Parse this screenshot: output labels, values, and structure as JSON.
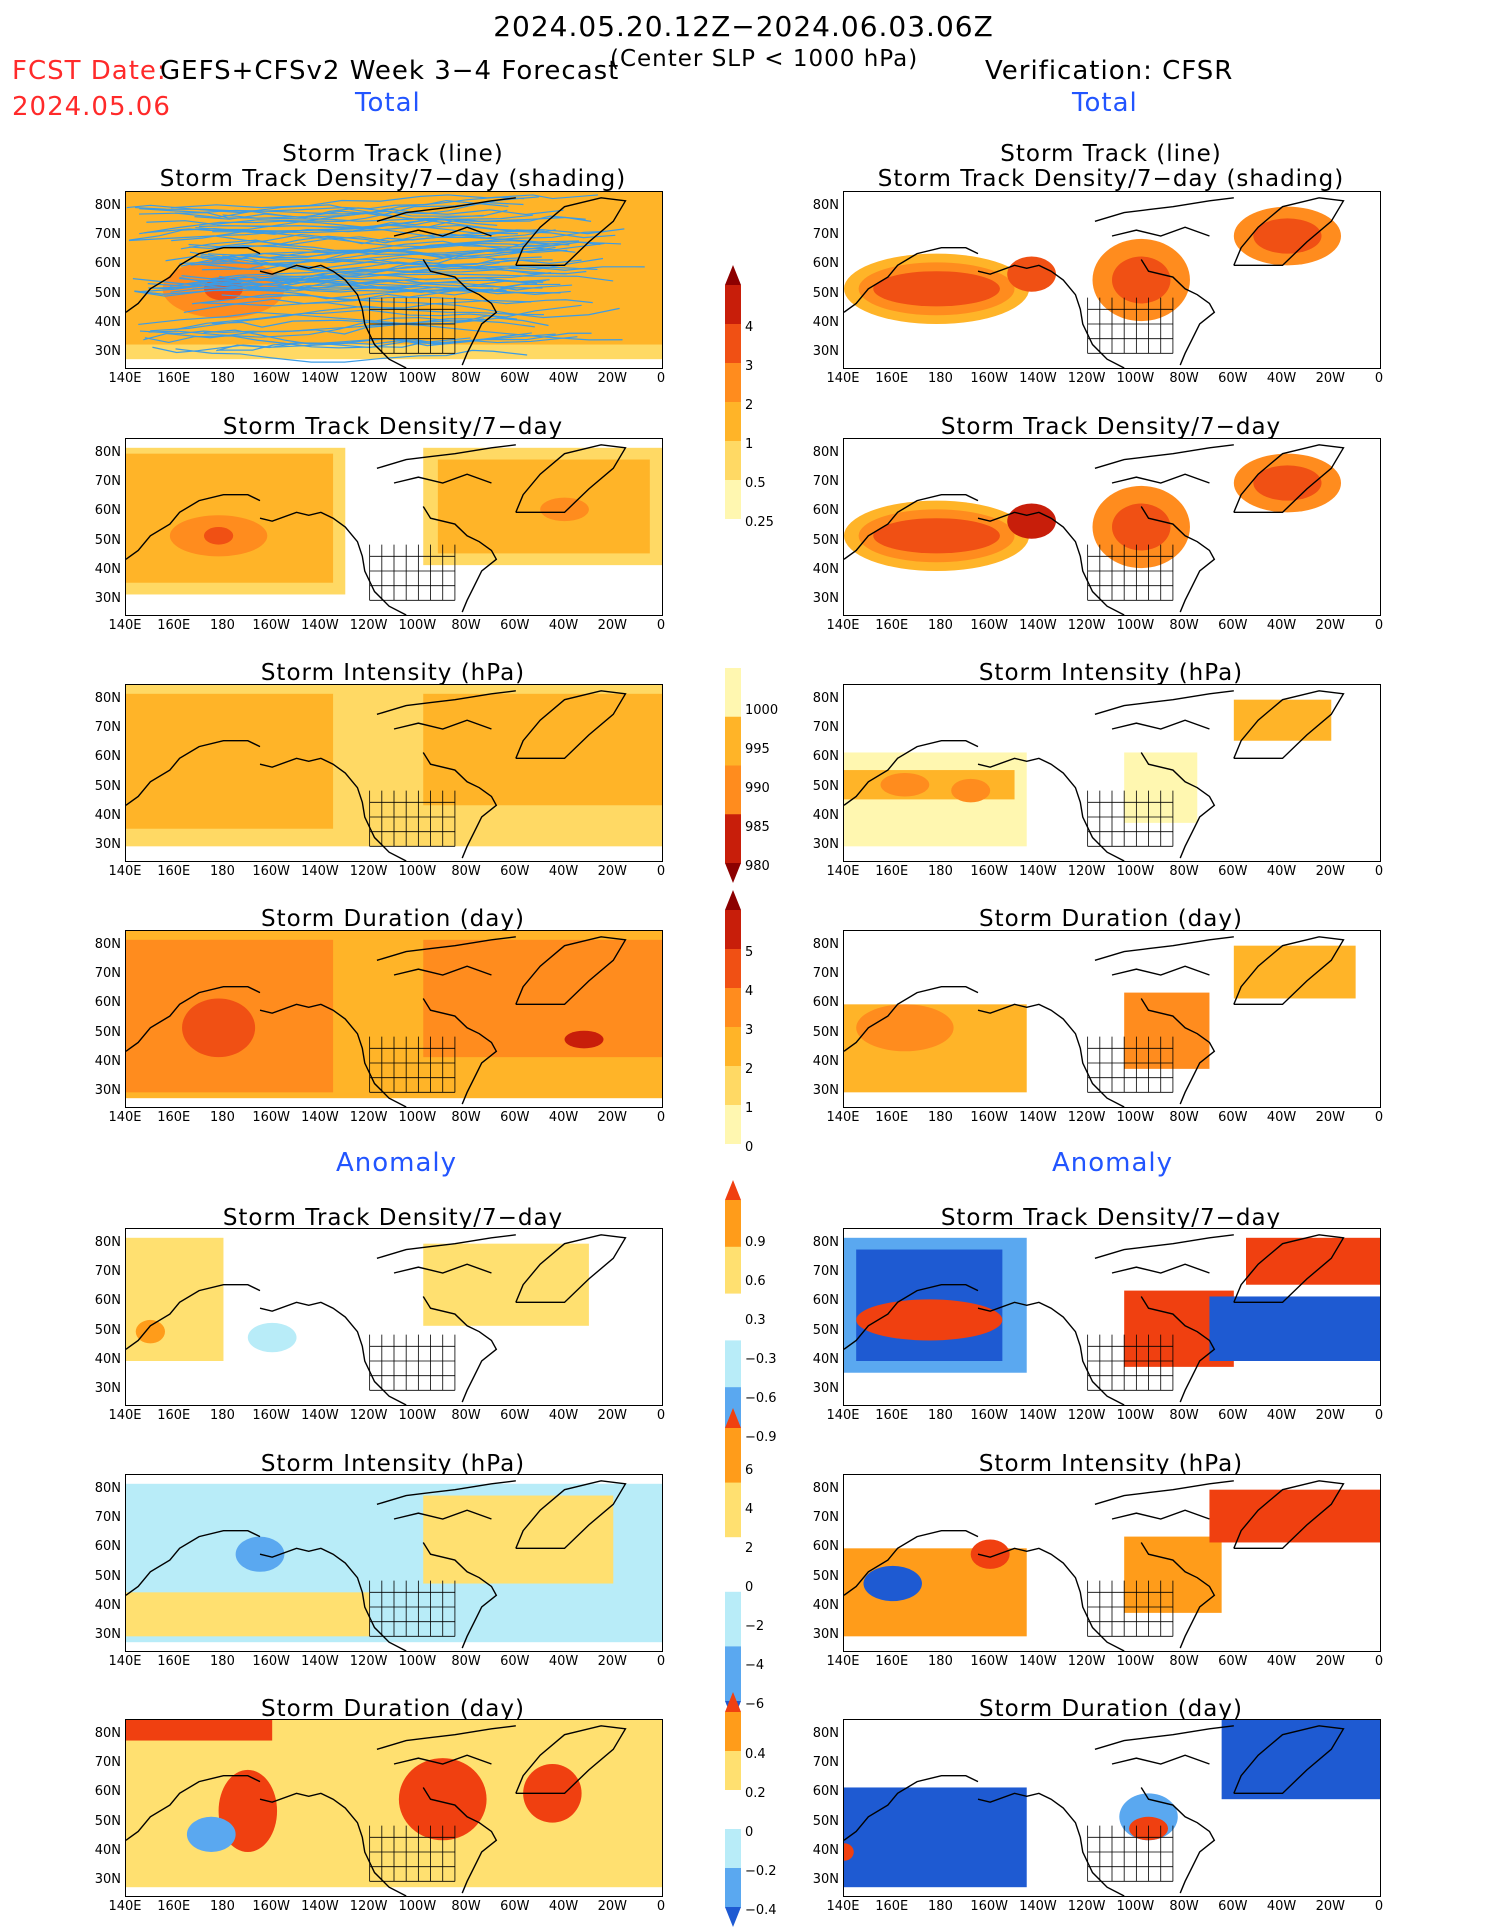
{
  "header": {
    "date_range": "2024.05.20.12Z−2024.06.03.06Z",
    "fcst_label": "FCST Date:",
    "fcst_date": "2024.05.06",
    "model": "GEFS+CFSv2 Week 3−4 Forecast",
    "criteria": "(Center SLP < 1000 hPa)",
    "verification": "Verification: CFSR"
  },
  "sections": {
    "total": "Total",
    "anomaly": "Anomaly"
  },
  "titles": {
    "track_line": "Storm Track (line)",
    "track_shading": "Storm Track Density/7−day (shading)",
    "density": "Storm Track Density/7−day",
    "intensity": "Storm Intensity (hPa)",
    "duration": "Storm Duration (day)"
  },
  "axes": {
    "lat_ticks": [
      "80N",
      "70N",
      "60N",
      "50N",
      "40N",
      "30N"
    ],
    "lon_ticks": [
      "140E",
      "160E",
      "180",
      "160W",
      "140W",
      "120W",
      "100W",
      "80W",
      "60W",
      "40W",
      "20W",
      "0"
    ]
  },
  "colorbars": {
    "density_total": [
      "4",
      "3",
      "2",
      "1",
      "0.5",
      "0.25"
    ],
    "intensity_total": [
      "1000",
      "995",
      "990",
      "985",
      "980"
    ],
    "duration_total": [
      "5",
      "4",
      "3",
      "2",
      "1",
      "0"
    ],
    "density_anom": [
      "0.9",
      "0.6",
      "0.3",
      "−0.3",
      "−0.6",
      "−0.9"
    ],
    "intensity_anom": [
      "6",
      "4",
      "2",
      "0",
      "−2",
      "−4",
      "−6"
    ],
    "duration_anom": [
      "0.4",
      "0.2",
      "0",
      "−0.2",
      "−0.4"
    ]
  },
  "palette": {
    "total": [
      "#fff7b0",
      "#ffd964",
      "#ffb428",
      "#ff8c1e",
      "#f05014",
      "#c81e0a",
      "#8c0000"
    ],
    "anom_pos": [
      "#ffe070",
      "#ff9c1a",
      "#f04010"
    ],
    "anom_neg": [
      "#b8ecf8",
      "#5aa8f0",
      "#1e5ad2"
    ],
    "track_line": "#3c9ce6"
  }
}
